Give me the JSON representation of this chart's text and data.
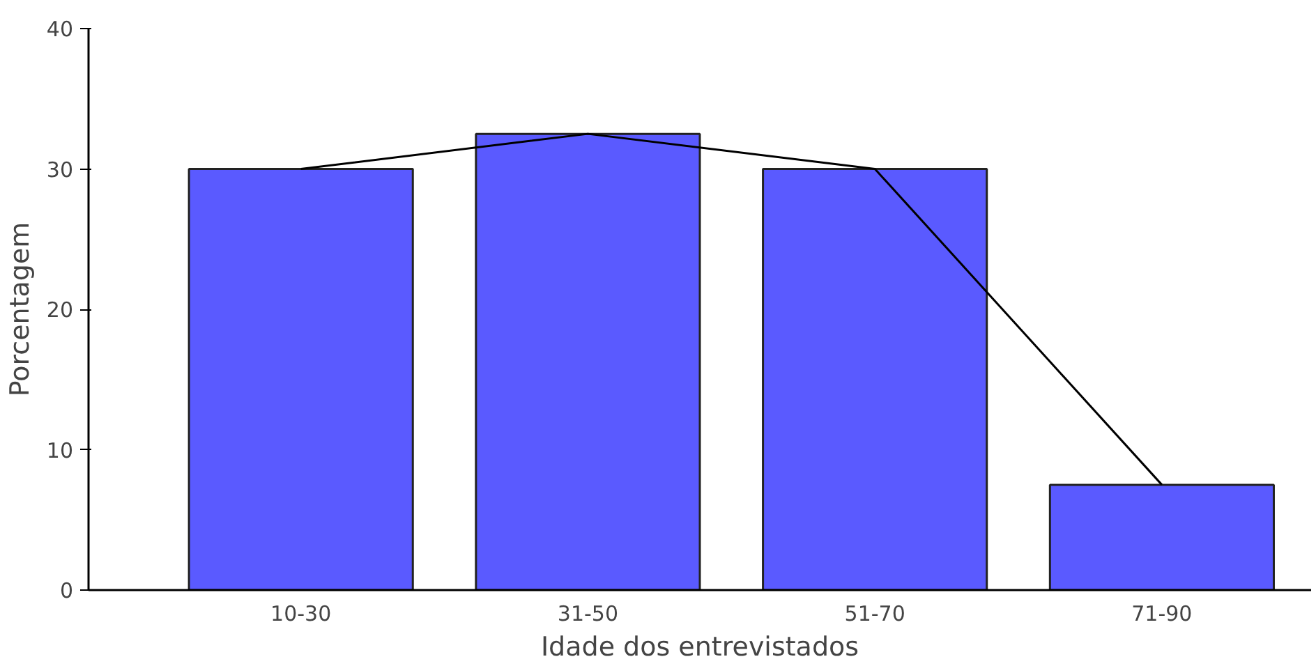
{
  "chart_data": {
    "type": "bar",
    "xlabel": "Idade dos entrevistados",
    "ylabel": "Porcentagem",
    "categories": [
      "10-30",
      "31-50",
      "51-70",
      "71-90"
    ],
    "series": [
      {
        "color": "#5a5aff",
        "values": [
          30,
          32.5,
          30,
          7.5
        ]
      },
      {
        "type": "line",
        "color": "#000000",
        "values": [
          30,
          32.5,
          30,
          7.5
        ]
      }
    ],
    "ylim": [
      0,
      40
    ],
    "yticks": [
      0,
      10,
      20,
      30,
      40
    ],
    "grid": false,
    "marker": "none"
  }
}
